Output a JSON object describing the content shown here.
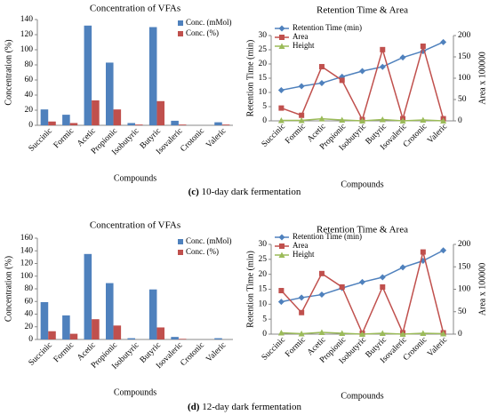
{
  "chart_data": [
    {
      "type": "bar",
      "title": "Concentration of VFAs",
      "x_label": "Compounds",
      "y_label": "Concentration (%)",
      "categories": [
        "Succinic",
        "Formic",
        "Acetic",
        "Propionic",
        "Isobutyric",
        "Butyric",
        "Isovaleric",
        "Crotonic",
        "Valeric"
      ],
      "series": [
        {
          "name": "Conc. (mMol)",
          "color": "#4f81bd",
          "values": [
            21,
            14,
            132,
            83,
            3,
            130,
            6,
            0,
            4
          ]
        },
        {
          "name": "Conc. (%)",
          "color": "#c0504d",
          "values": [
            5,
            3,
            33,
            21,
            1,
            32,
            1,
            0,
            1
          ]
        }
      ],
      "ylim": [
        0,
        140
      ],
      "yticks": [
        0,
        20,
        40,
        60,
        80,
        100,
        120,
        140
      ],
      "legend": "top-right"
    },
    {
      "type": "line",
      "title": "Retention Time & Area",
      "x_label": "Compounds",
      "y_label": "Retention Time (min)",
      "y2_label": "Area x 100000",
      "categories": [
        "Succinic",
        "Formic",
        "Acetic",
        "Propionic",
        "Isobutyric",
        "Butyric",
        "Isovaleric",
        "Crotonic",
        "Valeric"
      ],
      "series": [
        {
          "name": "Retention Time (min)",
          "color": "#4f81bd",
          "marker": "diamond",
          "values": [
            10.8,
            12.2,
            13.3,
            15.5,
            17.5,
            19,
            22.3,
            24.5,
            27.7
          ]
        },
        {
          "name": "Area",
          "color": "#c0504d",
          "marker": "square",
          "axis": "y2",
          "values": [
            30,
            13,
            127,
            95,
            3,
            167,
            5,
            175,
            5
          ]
        },
        {
          "name": "Height",
          "color": "#9bbb59",
          "marker": "triangle",
          "axis": "y2",
          "values": [
            1,
            1,
            5,
            2,
            0,
            3,
            0,
            2,
            0
          ]
        }
      ],
      "ylim": [
        0,
        30
      ],
      "yticks": [
        0,
        5,
        10,
        15,
        20,
        25,
        30
      ],
      "y2lim": [
        0,
        200
      ],
      "y2ticks": [
        0,
        50,
        100,
        150,
        200
      ],
      "legend": "top-left"
    },
    {
      "type": "bar",
      "title": "Concentration of VFAs",
      "x_label": "Compounds",
      "y_label": "Concentration (%)",
      "categories": [
        "Succinic",
        "Formic",
        "Acetic",
        "Propionic",
        "Isobutyric",
        "Butyric",
        "Isovaleric",
        "Crotonic",
        "Valeric"
      ],
      "series": [
        {
          "name": "Conc. (mMol)",
          "color": "#4f81bd",
          "values": [
            59,
            38,
            135,
            89,
            2,
            79,
            4,
            0,
            2
          ]
        },
        {
          "name": "Conc. (%)",
          "color": "#c0504d",
          "values": [
            13,
            9,
            32,
            22,
            0,
            19,
            1,
            0,
            0
          ]
        }
      ],
      "ylim": [
        0,
        160
      ],
      "yticks": [
        0,
        20,
        40,
        60,
        80,
        100,
        120,
        140,
        160
      ],
      "legend": "top-right"
    },
    {
      "type": "line",
      "title": "Retention Time & Area",
      "x_label": "Compounds",
      "y_label": "Retention Time (min)",
      "y2_label": "Area x 100000",
      "categories": [
        "Succinic",
        "Formic",
        "Acetic",
        "Propionic",
        "Isobutyric",
        "Butyric",
        "Isovaleric",
        "Crotonic",
        "Valeric"
      ],
      "series": [
        {
          "name": "Retention Time (min)",
          "color": "#4f81bd",
          "marker": "diamond",
          "values": [
            10.8,
            12.2,
            13.2,
            15.4,
            17.4,
            19,
            22.3,
            24.5,
            28
          ]
        },
        {
          "name": "Area",
          "color": "#c0504d",
          "marker": "square",
          "axis": "y2",
          "values": [
            97,
            48,
            135,
            105,
            2,
            105,
            3,
            183,
            3
          ]
        },
        {
          "name": "Height",
          "color": "#9bbb59",
          "marker": "triangle",
          "axis": "y2",
          "values": [
            3,
            1,
            4,
            2,
            0,
            2,
            0,
            2,
            1
          ]
        }
      ],
      "ylim": [
        0,
        30
      ],
      "yticks": [
        0,
        5,
        10,
        15,
        20,
        25,
        30
      ],
      "y2lim": [
        0,
        200
      ],
      "y2ticks": [
        0,
        50,
        100,
        150,
        200
      ],
      "legend": "top-left"
    }
  ],
  "captions": [
    {
      "label": "(c)",
      "text": "10-day dark fermentation"
    },
    {
      "label": "(d)",
      "text": "12-day dark fermentation"
    }
  ]
}
